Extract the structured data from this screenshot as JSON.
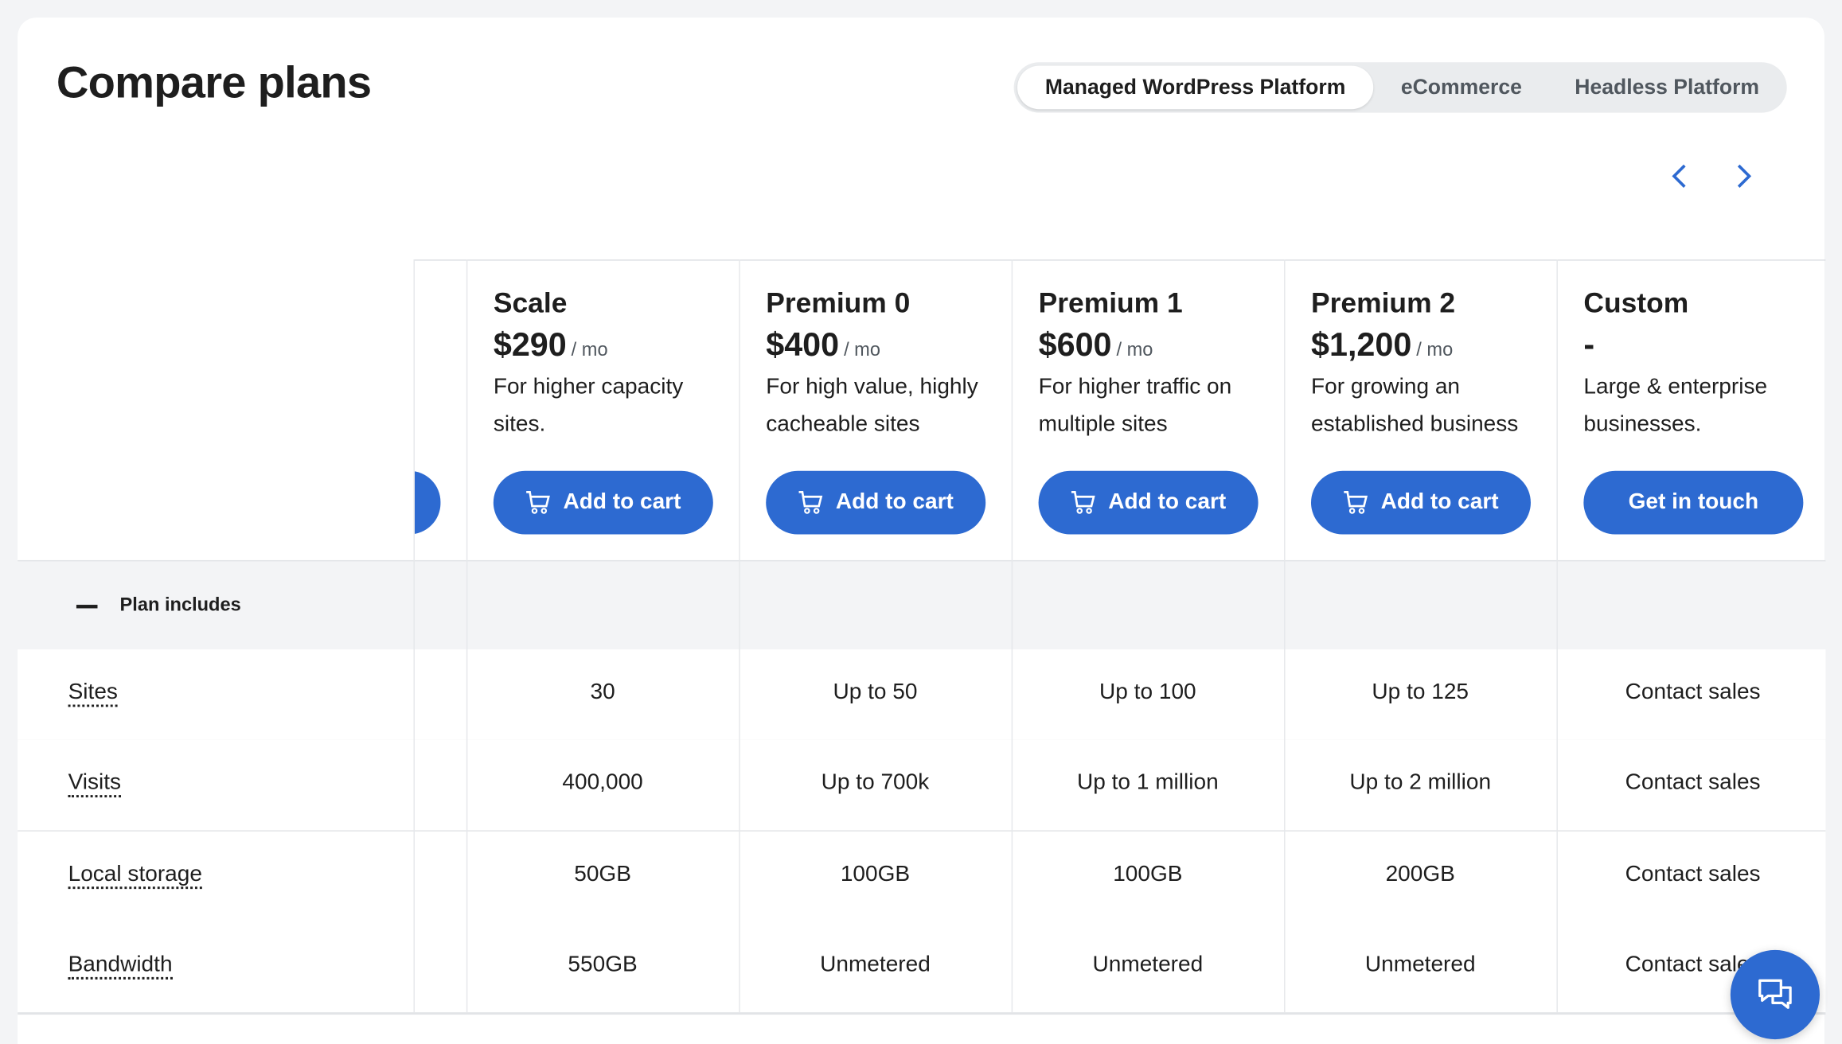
{
  "header": {
    "title": "Compare plans"
  },
  "tabs": [
    {
      "label": "Managed WordPress Platform",
      "active": true
    },
    {
      "label": "eCommerce",
      "active": false
    },
    {
      "label": "Headless Platform",
      "active": false
    }
  ],
  "nav": {
    "prev_icon": "chevron-left-icon",
    "next_icon": "chevron-right-icon"
  },
  "accent_color": "#2d6ad1",
  "plans": [
    {
      "name": "Scale",
      "price": "$290",
      "period": "/ mo",
      "desc": "For higher capacity sites.",
      "button": "Add to cart"
    },
    {
      "name": "Premium 0",
      "price": "$400",
      "period": "/ mo",
      "desc": "For high value, highly cacheable sites",
      "button": "Add to cart"
    },
    {
      "name": "Premium 1",
      "price": "$600",
      "period": "/ mo",
      "desc": "For higher traffic on multiple sites",
      "button": "Add to cart"
    },
    {
      "name": "Premium 2",
      "price": "$1,200",
      "period": "/ mo",
      "desc": "For growing an established business",
      "button": "Add to cart"
    },
    {
      "name": "Custom",
      "price": "-",
      "period": "",
      "desc": "Large & enterprise businesses.",
      "button": "Get in touch"
    }
  ],
  "section": {
    "label": "Plan includes"
  },
  "rows": [
    {
      "label": "Sites",
      "values": [
        "30",
        "Up to 50",
        "Up to 100",
        "Up to 125",
        "Contact sales"
      ]
    },
    {
      "label": "Visits",
      "values": [
        "400,000",
        "Up to 700k",
        "Up to 1 million",
        "Up to 2 million",
        "Contact sales"
      ]
    },
    {
      "label": "Local storage",
      "values": [
        "50GB",
        "100GB",
        "100GB",
        "200GB",
        "Contact sales"
      ]
    },
    {
      "label": "Bandwidth",
      "values": [
        "550GB",
        "Unmetered",
        "Unmetered",
        "Unmetered",
        "Contact sales"
      ]
    }
  ]
}
